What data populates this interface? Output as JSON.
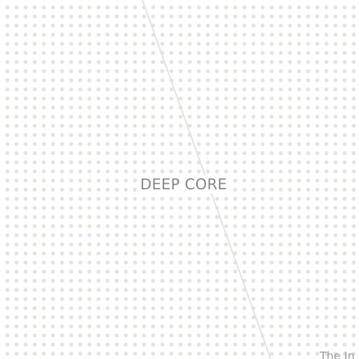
{
  "map": {
    "background_color": "#ffffff",
    "dot_color": "#e3e3df",
    "boundary_color": "#e2e2e2",
    "region_label": "DEEP CORE",
    "edge_label": "The In",
    "label_color": "#868686"
  }
}
